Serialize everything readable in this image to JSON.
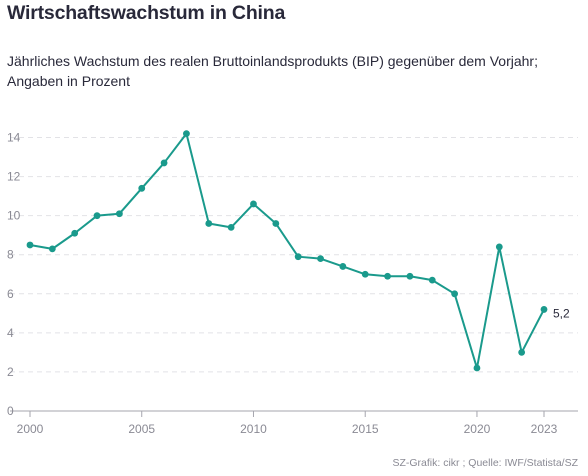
{
  "header": {
    "title": "Wirtschaftswachstum in China",
    "subtitle": "Jährliches Wachstum des realen Bruttoinlandsprodukts (BIP) gegenüber dem Vorjahr; Angaben in Prozent"
  },
  "footer": {
    "source": "SZ-Grafik: cikr ; Quelle: IWF/Statista/SZ"
  },
  "colors": {
    "line": "#1a9a8c",
    "grid": "#e2e2e6",
    "axis": "#a6a6ae",
    "tick_text": "#8a8a94"
  },
  "chart_data": {
    "type": "line",
    "title": "Wirtschaftswachstum in China",
    "xlabel": "",
    "ylabel": "",
    "x": [
      2000,
      2001,
      2002,
      2003,
      2004,
      2005,
      2006,
      2007,
      2008,
      2009,
      2010,
      2011,
      2012,
      2013,
      2014,
      2015,
      2016,
      2017,
      2018,
      2019,
      2020,
      2021,
      2022,
      2023
    ],
    "series": [
      {
        "values": [
          8.5,
          8.3,
          9.1,
          10.0,
          10.1,
          11.4,
          12.7,
          14.2,
          9.6,
          9.4,
          10.6,
          9.6,
          7.9,
          7.8,
          7.4,
          7.0,
          6.9,
          6.9,
          6.7,
          6.0,
          2.2,
          8.4,
          3.0,
          5.2
        ]
      }
    ],
    "xlim": [
      2000,
      2023
    ],
    "ylim": [
      0,
      15
    ],
    "x_ticks": [
      2000,
      2005,
      2010,
      2015,
      2020,
      2023
    ],
    "y_ticks": [
      0,
      2,
      4,
      6,
      8,
      10,
      12,
      14
    ],
    "grid": "horizontal dashed",
    "end_label": "5,2"
  }
}
